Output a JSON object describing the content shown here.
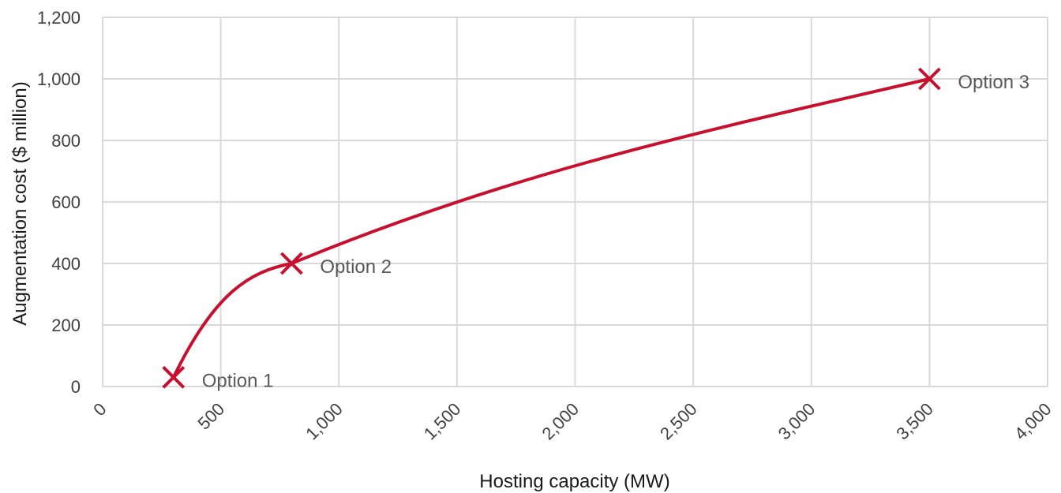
{
  "chart_data": {
    "type": "line",
    "title": "",
    "xlabel": "Hosting capacity (MW)",
    "ylabel": "Augmentation cost ($ million)",
    "xlim": [
      0,
      4000
    ],
    "ylim": [
      0,
      1200
    ],
    "x_ticks": [
      0,
      500,
      1000,
      1500,
      2000,
      2500,
      3000,
      3500,
      4000
    ],
    "x_tick_labels": [
      "0",
      "500",
      "1,000",
      "1,500",
      "2,000",
      "2,500",
      "3,000",
      "3,500",
      "4,000"
    ],
    "y_ticks": [
      0,
      200,
      400,
      600,
      800,
      1000,
      1200
    ],
    "y_tick_labels": [
      "0",
      "200",
      "400",
      "600",
      "800",
      "1,000",
      "1,200"
    ],
    "grid": true,
    "legend": "none",
    "line_color": "#c8102e",
    "series": [
      {
        "points": [
          {
            "x": 300,
            "y": 30,
            "label": "Option 1"
          },
          {
            "x": 800,
            "y": 400,
            "label": "Option 2"
          },
          {
            "x": 3500,
            "y": 1000,
            "label": "Option 3"
          }
        ]
      }
    ]
  }
}
